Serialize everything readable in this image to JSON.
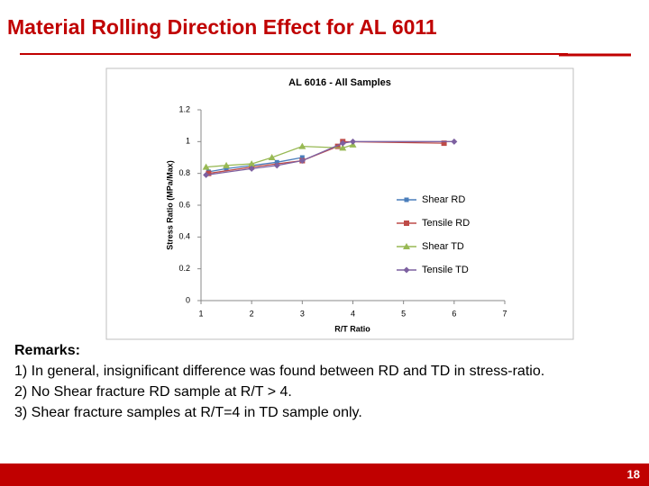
{
  "slide": {
    "title": "Material Rolling Direction Effect for AL 6011",
    "remarks_heading": "Remarks:",
    "remarks": [
      "1)  In general, insignificant difference was found between RD and TD in stress-ratio.",
      "2)  No Shear fracture RD sample at R/T > 4.",
      "3)  Shear fracture samples at R/T=4 in TD sample only."
    ],
    "page_number": 18
  },
  "chart_data": {
    "type": "line",
    "title": "AL 6016 - All Samples",
    "x_label": "R/T Ratio",
    "y_label": "Stress Ratio (MPa/Max)",
    "xlim": [
      1,
      7
    ],
    "xticks": [
      1,
      2,
      3,
      4,
      5,
      6,
      7
    ],
    "ylim": [
      0,
      1.2
    ],
    "yticks": [
      0,
      0.2,
      0.4,
      0.6,
      0.8,
      1,
      1.2
    ],
    "grid": false,
    "legend": "right",
    "series": [
      {
        "name": "Shear RD",
        "color": "#4a7ebb",
        "x": [
          1.15,
          1.5,
          2,
          2.5,
          3
        ],
        "values": [
          0.81,
          0.83,
          0.85,
          0.87,
          0.9
        ]
      },
      {
        "name": "Tensile RD",
        "color": "#be4b48",
        "x": [
          1.15,
          2,
          3,
          3.7,
          3.8,
          5.8
        ],
        "values": [
          0.8,
          0.84,
          0.88,
          0.97,
          1.0,
          0.99
        ]
      },
      {
        "name": "Shear TD",
        "color": "#98b954",
        "x": [
          1.1,
          1.5,
          2,
          2.4,
          3,
          3.8,
          4
        ],
        "values": [
          0.84,
          0.85,
          0.86,
          0.9,
          0.97,
          0.96,
          0.98
        ]
      },
      {
        "name": "Tensile TD",
        "color": "#7d60a0",
        "x": [
          1.1,
          2,
          2.5,
          3,
          3.8,
          4,
          6
        ],
        "values": [
          0.79,
          0.83,
          0.85,
          0.88,
          0.99,
          1.0,
          1.0
        ]
      }
    ]
  }
}
